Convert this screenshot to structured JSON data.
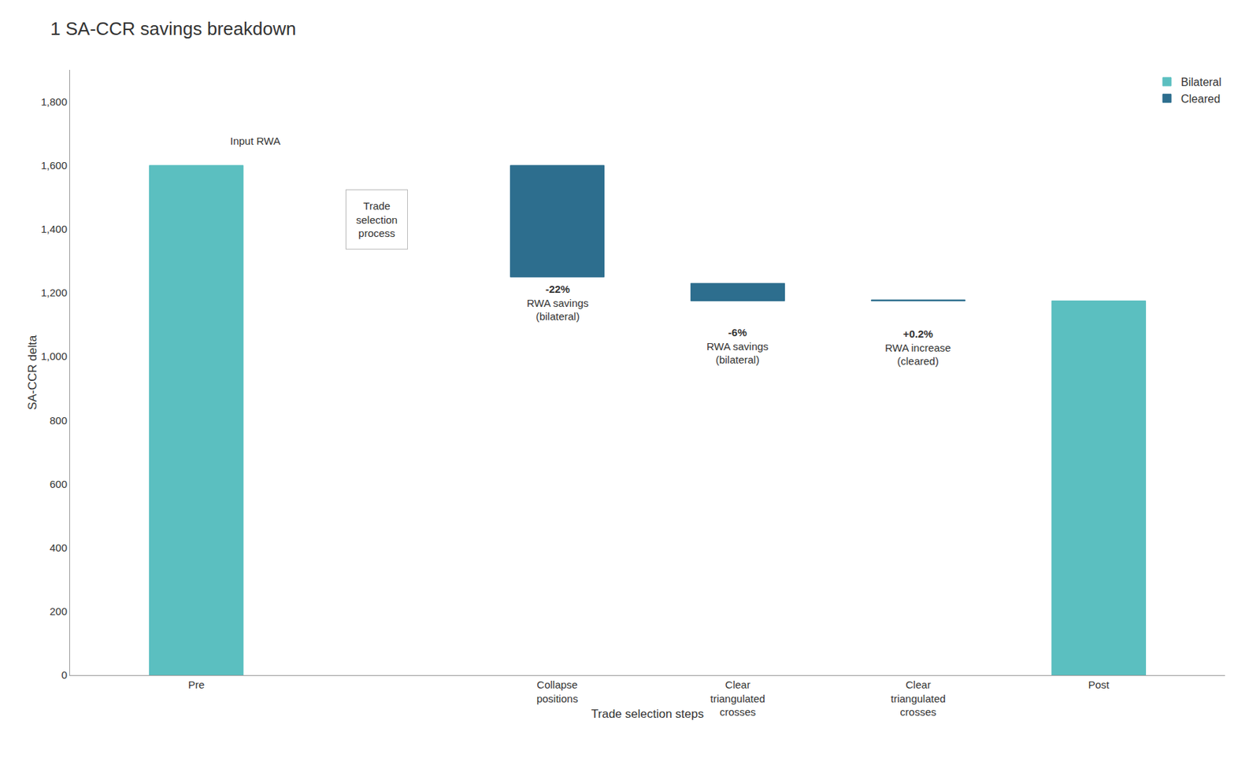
{
  "chart_data": {
    "type": "bar",
    "title": "1 SA-CCR savings breakdown",
    "xlabel": "Trade selection steps",
    "ylabel": "SA-CCR delta",
    "categories": [
      "Pre",
      null,
      "Collapse\npositions",
      "Clear\ntriangulated\ncrosses",
      "Clear\ntriangulated\ncrosses",
      "Post"
    ],
    "series": [
      {
        "name": "Bilateral",
        "color": "#5bbfc0",
        "values": [
          1600,
          null,
          null,
          null,
          null,
          1175
        ],
        "base": [
          0,
          null,
          null,
          null,
          null,
          0
        ]
      },
      {
        "name": "Cleared",
        "color": "#2d6e8e",
        "values": [
          null,
          null,
          350,
          55,
          3,
          null
        ],
        "base": [
          null,
          null,
          1250,
          1175,
          1175,
          null
        ]
      }
    ],
    "ylim": [
      0,
      1900
    ],
    "yticks": [
      0,
      200,
      400,
      600,
      800,
      {
        "value": 1000,
        "label": "1,000"
      },
      {
        "value": 1200,
        "label": "1,200"
      },
      {
        "value": 1400,
        "label": "1,400"
      },
      {
        "value": 1600,
        "label": "1,600"
      },
      {
        "value": 1800,
        "label": "1,800"
      }
    ],
    "grid": false,
    "legend": "upper right",
    "annotations": [
      {
        "text": "Input RWA",
        "x": 0.18,
        "y": 1655
      },
      {
        "text": "-22%",
        "label": "RWA savings\n(bilateral)",
        "x": 2,
        "y": 1235
      },
      {
        "text": "-6%",
        "label": "RWA savings\n(bilateral)",
        "x": 3,
        "y": 1100
      },
      {
        "text": "+0.2%",
        "label": "RWA increase\n(cleared)",
        "x": 4,
        "y": 1095
      }
    ],
    "box": {
      "text": "Trade\nselection\nprocess",
      "x": 1,
      "y": 1430
    }
  }
}
